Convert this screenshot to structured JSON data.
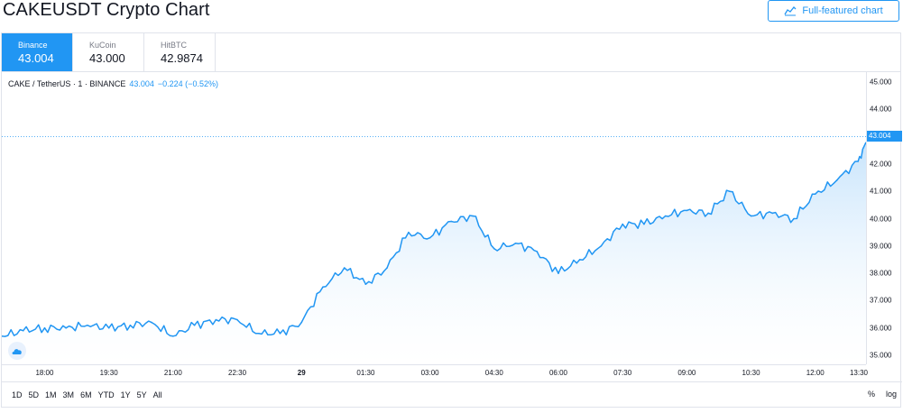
{
  "header": {
    "title": "CAKEUSDT Crypto Chart",
    "full_chart_label": "Full-featured chart"
  },
  "exchanges": [
    {
      "name": "Binance",
      "price": "43.004",
      "active": true
    },
    {
      "name": "KuCoin",
      "price": "43.000",
      "active": false
    },
    {
      "name": "HitBTC",
      "price": "42.9874",
      "active": false
    }
  ],
  "legend": {
    "symbol": "CAKE / TetherUS · 1 · BINANCE",
    "price": "43.004",
    "change": "−0.224 (−0.52%)"
  },
  "colors": {
    "accent": "#2196f3",
    "line": "#2196f3",
    "fill_top": "#bbdefb",
    "fill_bottom": "#ffffff"
  },
  "price_axis": {
    "labels": [
      "45.000",
      "44.000",
      "43.000",
      "42.000",
      "41.000",
      "40.000",
      "39.000",
      "38.000",
      "37.000",
      "36.000",
      "35.000"
    ],
    "current": "43.004"
  },
  "time_axis": {
    "labels": [
      "18:00",
      "19:30",
      "21:00",
      "22:30",
      "29",
      "01:30",
      "03:00",
      "04:30",
      "06:00",
      "07:30",
      "09:00",
      "10:30",
      "12:00",
      "13:30"
    ]
  },
  "ranges": [
    "1D",
    "5D",
    "1M",
    "3M",
    "6M",
    "YTD",
    "1Y",
    "5Y",
    "All"
  ],
  "scale": {
    "percent": "%",
    "log": "log"
  },
  "chart_data": {
    "type": "area",
    "symbol": "CAKEUSDT",
    "ylim": [
      35.0,
      45.0
    ],
    "x": [
      "17:00",
      "17:30",
      "18:00",
      "18:30",
      "19:00",
      "19:30",
      "20:00",
      "20:30",
      "21:00",
      "21:30",
      "22:00",
      "22:30",
      "23:00",
      "23:30",
      "00:00",
      "00:30",
      "01:00",
      "01:30",
      "02:00",
      "02:30",
      "03:00",
      "03:30",
      "04:00",
      "04:30",
      "05:00",
      "05:30",
      "06:00",
      "06:30",
      "07:00",
      "07:30",
      "08:00",
      "08:30",
      "09:00",
      "09:30",
      "10:00",
      "10:30",
      "11:00",
      "11:30",
      "12:00",
      "12:30",
      "13:00",
      "13:15"
    ],
    "values": [
      35.7,
      35.9,
      36.0,
      36.0,
      36.1,
      36.0,
      36.1,
      36.2,
      35.7,
      36.1,
      36.3,
      36.3,
      35.8,
      35.8,
      36.2,
      37.5,
      38.2,
      37.6,
      38.2,
      39.5,
      39.3,
      39.9,
      40.1,
      38.9,
      39.1,
      38.8,
      38.0,
      38.5,
      39.0,
      39.8,
      39.8,
      40.1,
      40.3,
      40.2,
      41.0,
      40.1,
      40.2,
      40.0,
      40.9,
      41.4,
      42.1,
      43.0
    ]
  }
}
